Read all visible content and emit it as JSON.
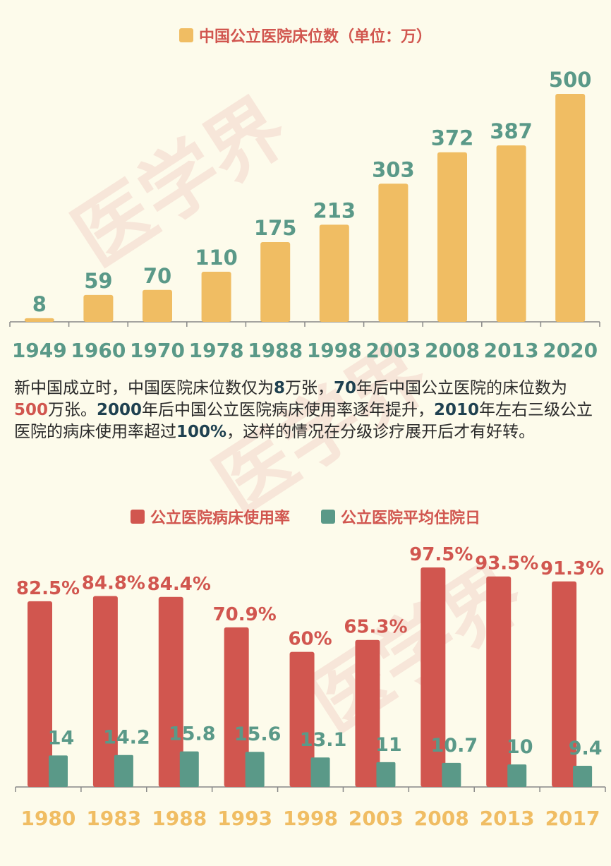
{
  "watermark": "医学界",
  "colors": {
    "bg": "#fdfbeb",
    "gold": "#f0bd63",
    "red": "#d1564f",
    "teal": "#5a9988",
    "navy": "#1f4150",
    "axis": "#888888"
  },
  "chart_data": [
    {
      "type": "bar",
      "legend": "中国公立医院床位数（单位：万）",
      "categories": [
        "1949",
        "1960",
        "1970",
        "1978",
        "1988",
        "1998",
        "2003",
        "2008",
        "2013",
        "2020"
      ],
      "series": [
        {
          "name": "中国公立医院床位数（单位：万）",
          "values": [
            8,
            59,
            70,
            110,
            175,
            213,
            303,
            372,
            387,
            500
          ]
        }
      ],
      "ylim": [
        0,
        500
      ]
    },
    {
      "type": "bar",
      "categories": [
        "1980",
        "1983",
        "1988",
        "1993",
        "1998",
        "2003",
        "2008",
        "2013",
        "2017"
      ],
      "series": [
        {
          "name": "公立医院病床使用率",
          "values": [
            82.5,
            84.8,
            84.4,
            70.9,
            60,
            65.3,
            97.5,
            93.5,
            91.3
          ],
          "labels": [
            "82.5%",
            "84.8%",
            "84.4%",
            "70.9%",
            "60%",
            "65.3%",
            "97.5%",
            "93.5%",
            "91.3%"
          ]
        },
        {
          "name": "公立医院平均住院日",
          "values": [
            14,
            14.2,
            15.8,
            15.6,
            13.1,
            11,
            10.7,
            10,
            9.4
          ],
          "labels": [
            "14",
            "14.2",
            "15.8",
            "15.6",
            "13.1",
            "11",
            "10.7",
            "10",
            "9.4"
          ]
        }
      ],
      "ylim": [
        0,
        100
      ]
    }
  ],
  "paragraph": {
    "t1": "新中国成立时，中国医院床位数仅为",
    "n1": "8",
    "t2": "万张，",
    "n2": "70",
    "t3": "年后中国公立医院的床位数为",
    "n3": "500",
    "t4": "万张。",
    "n4": "2000",
    "t5": "年后中国公立医院病床使用率逐年提升，",
    "n5": "2010",
    "t6": "年左右三级公立医院的病床使用率超过",
    "n6": "100%",
    "t7": "，这样的情况在分级诊疗展开后才有好转。"
  }
}
